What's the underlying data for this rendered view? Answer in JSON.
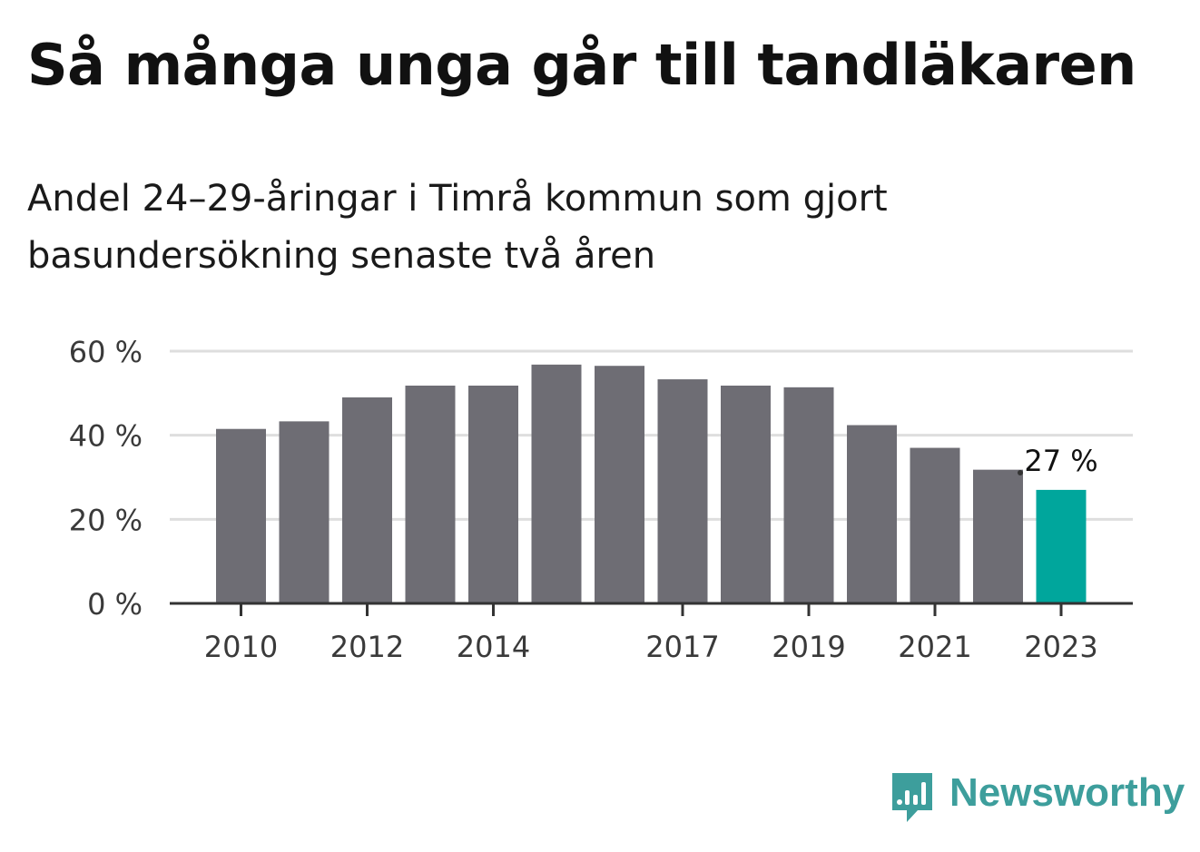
{
  "chart_data": {
    "type": "bar",
    "title": "Så många unga går till tandläkaren",
    "subtitle": "Andel 24–29-åringar i Timrå kommun som gjort basundersökning senaste två åren",
    "categories": [
      "2010",
      "2011",
      "2012",
      "2013",
      "2014",
      "2015",
      "2016",
      "2017",
      "2018",
      "2019",
      "2020",
      "2021",
      "2022",
      "2023"
    ],
    "x_tick_labels": [
      "2010",
      "",
      "2012",
      "",
      "2014",
      "",
      "",
      "2017",
      "",
      "2019",
      "",
      "2021",
      "",
      "2023"
    ],
    "values": [
      41.5,
      43.3,
      49,
      51.8,
      51.8,
      56.8,
      56.5,
      53.3,
      51.8,
      51.4,
      42.4,
      37,
      31.8,
      27
    ],
    "y_ticks": [
      0,
      20,
      40,
      60
    ],
    "y_tick_labels": [
      "0 %",
      "20 %",
      "40 %",
      "60 %"
    ],
    "ylim": [
      0,
      60
    ],
    "annotation": {
      "category": "2023",
      "text": "27 %"
    },
    "xlabel": "",
    "ylabel": "",
    "grid": true,
    "colors": {
      "bar": "#6e6d74",
      "highlight": "#00a69c",
      "grid": "#dedede",
      "axis": "#333333",
      "tick_text": "#3a3a3a"
    }
  },
  "brand": {
    "name": "Newsworthy",
    "icon": "newsworthy-logo-icon",
    "color": "#3d9e9c"
  }
}
